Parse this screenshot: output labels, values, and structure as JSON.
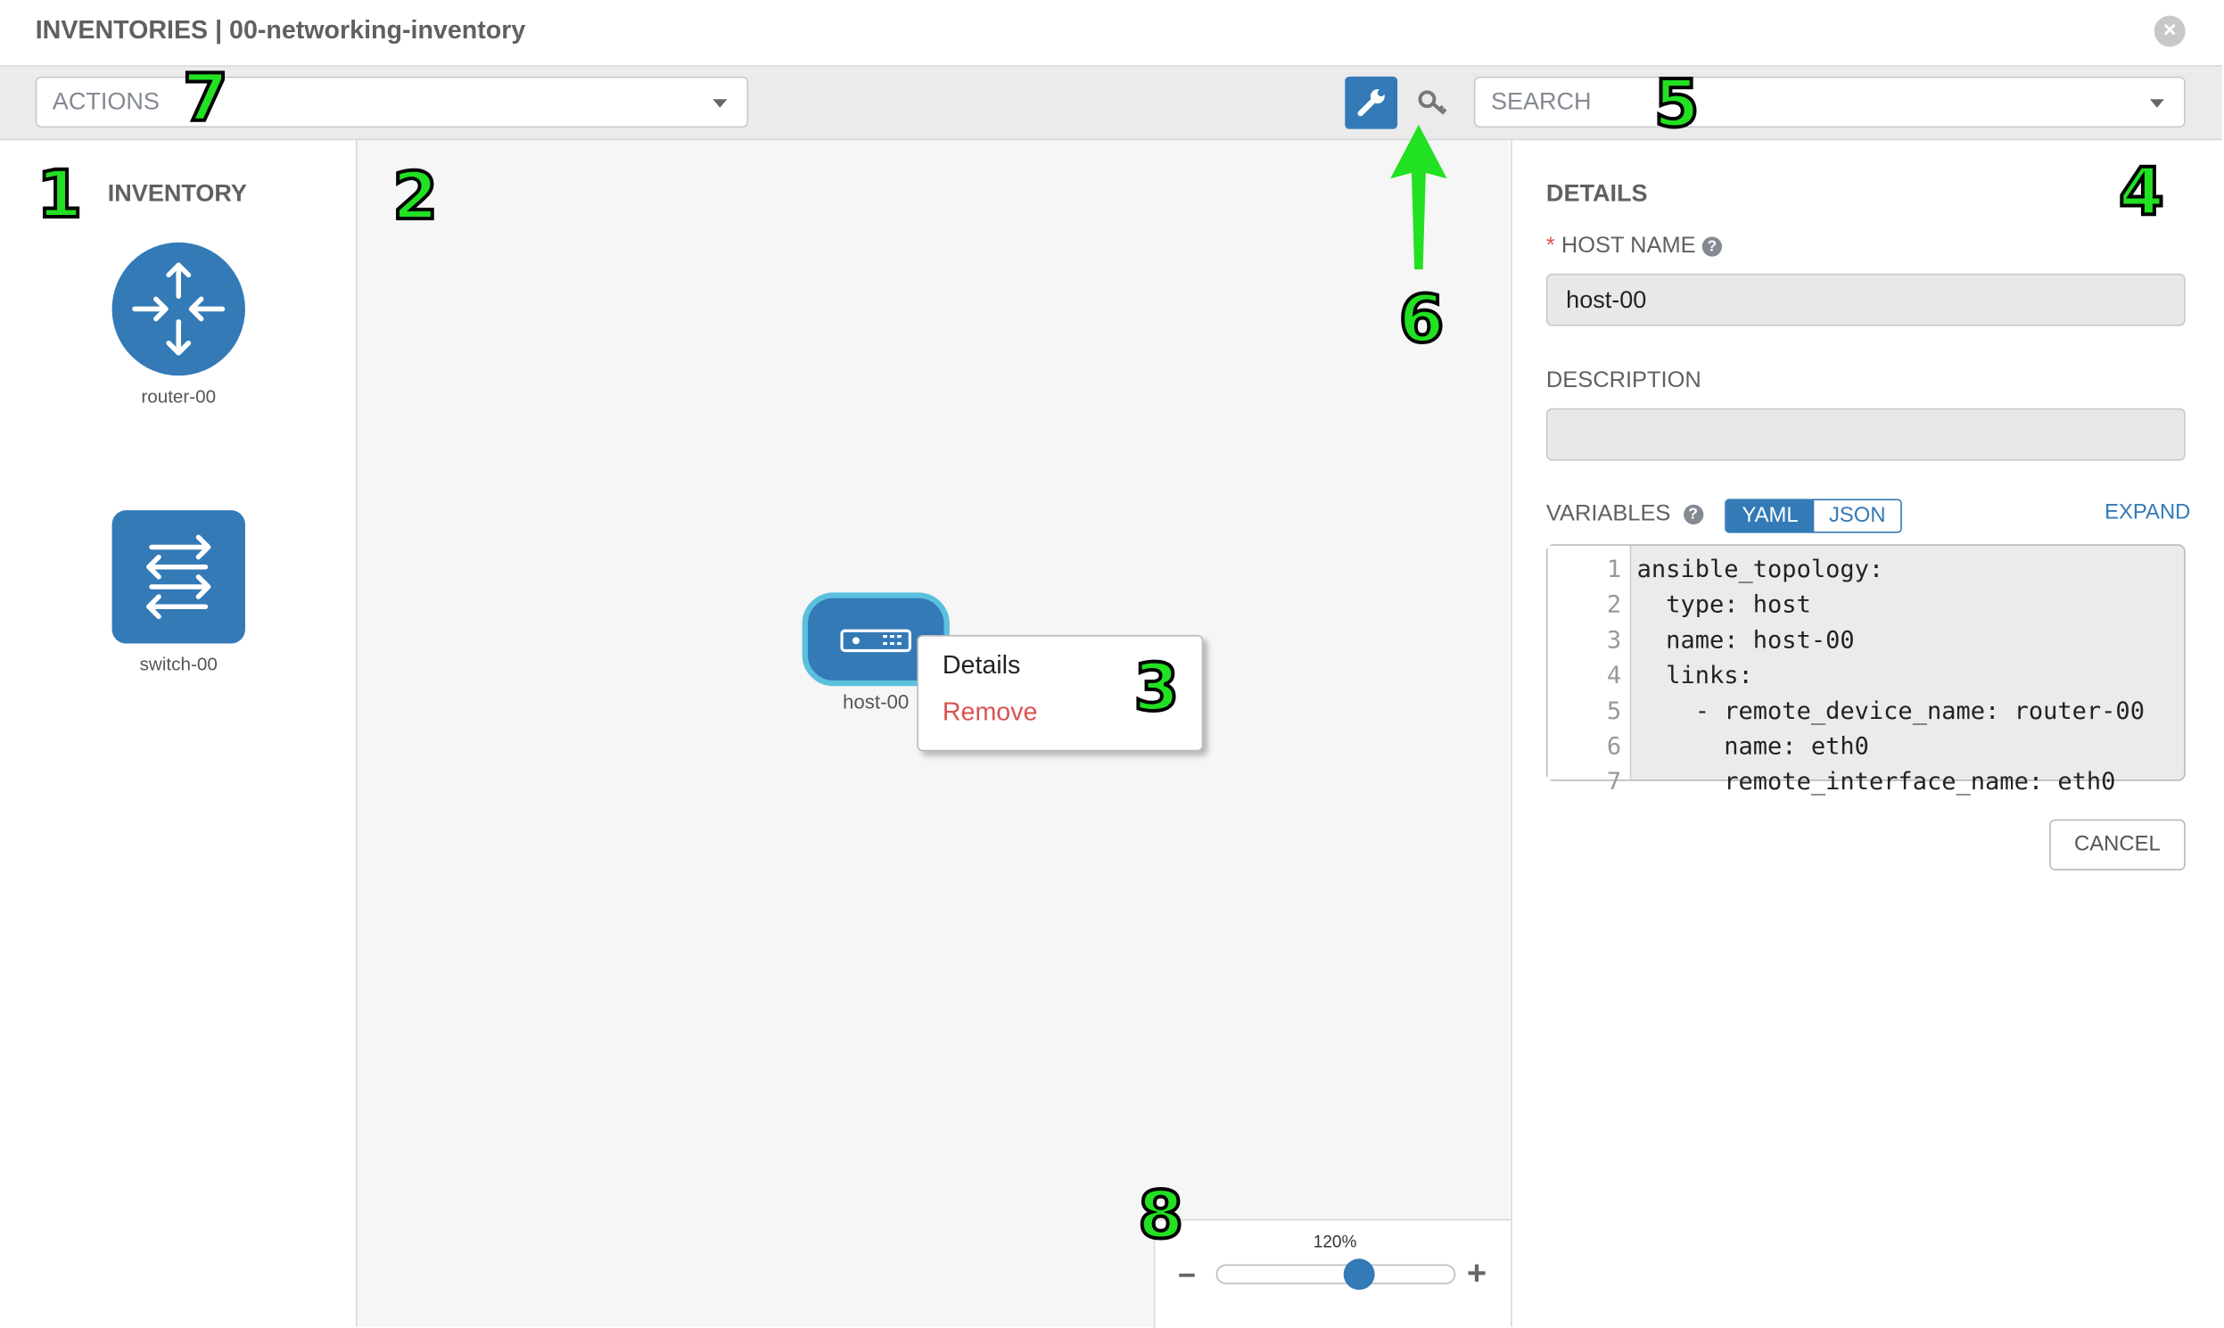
{
  "header": {
    "title": "INVENTORIES | 00-networking-inventory",
    "close_icon": "close-circle-icon"
  },
  "toolbar": {
    "actions_placeholder": "ACTIONS",
    "search_placeholder": "SEARCH",
    "wrench_icon": "wrench-icon",
    "key_icon": "key-icon"
  },
  "inventory": {
    "title": "INVENTORY",
    "items": [
      {
        "label": "router-00",
        "icon": "router-icon"
      },
      {
        "label": "switch-00",
        "icon": "switch-icon"
      }
    ]
  },
  "canvas": {
    "node": {
      "label": "host-00",
      "icon": "host-server-icon"
    },
    "context_menu": {
      "details": "Details",
      "remove": "Remove"
    },
    "zoom": {
      "level": "120%",
      "value_percent": 120,
      "minus": "−",
      "plus": "+"
    }
  },
  "details": {
    "title": "DETAILS",
    "required_mark": "*",
    "host_name_label": "HOST NAME",
    "host_name_value": "host-00",
    "description_label": "DESCRIPTION",
    "description_value": "",
    "variables_label": "VARIABLES",
    "yaml": "YAML",
    "json": "JSON",
    "expand": "EXPAND",
    "selected_format": "YAML",
    "code_lines": [
      "ansible_topology:",
      "  type: host",
      "  name: host-00",
      "  links:",
      "    - remote_device_name: router-00",
      "      name: eth0",
      "      remote_interface_name: eth0"
    ],
    "cancel": "CANCEL"
  },
  "annotations": [
    "1",
    "2",
    "3",
    "4",
    "5",
    "6",
    "7",
    "8"
  ],
  "colors": {
    "accent": "#337ab7",
    "node_border": "#5bc0de",
    "remove": "#d9534f",
    "annotation": "#22e022"
  }
}
